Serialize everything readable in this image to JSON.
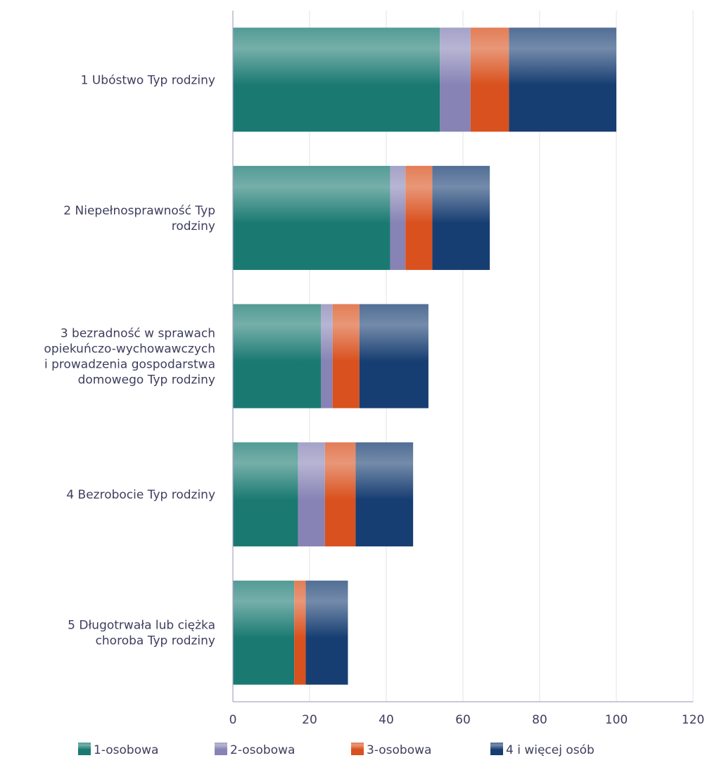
{
  "chart_data": {
    "type": "bar",
    "orientation": "horizontal",
    "stacked": true,
    "categories": [
      [
        "1 Ubóstwo Typ rodziny"
      ],
      [
        "2 Niepełnosprawność Typ",
        "rodziny"
      ],
      [
        "3 bezradność w sprawach",
        "opiekuńczo-wychowawczych",
        "i prowadzenia gospodarstwa",
        "domowego Typ rodziny"
      ],
      [
        "4 Bezrobocie Typ rodziny"
      ],
      [
        "5 Długotrwała lub ciężka",
        "choroba Typ rodziny"
      ]
    ],
    "series": [
      {
        "name": "1-osobowa",
        "color": "#1a7a72",
        "values": [
          54,
          41,
          23,
          17,
          16
        ]
      },
      {
        "name": "2-osobowa",
        "color": "#8783b5",
        "values": [
          8,
          4,
          3,
          7,
          0
        ]
      },
      {
        "name": "3-osobowa",
        "color": "#d9511e",
        "values": [
          10,
          7,
          7,
          8,
          3
        ]
      },
      {
        "name": "4  i więcej osób",
        "color": "#173e72",
        "values": [
          28,
          15,
          18,
          15,
          11
        ]
      }
    ],
    "xlim": [
      0,
      120
    ],
    "xticks": [
      "0",
      "20",
      "40",
      "60",
      "80",
      "100",
      "120"
    ],
    "grid": true,
    "legend": "bottom"
  }
}
